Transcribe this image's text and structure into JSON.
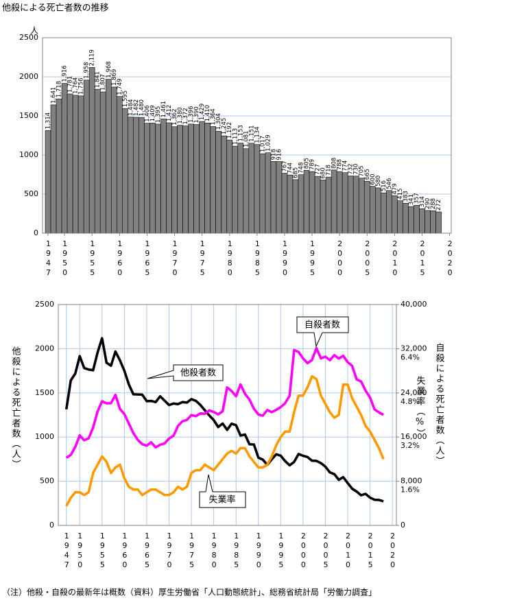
{
  "title": "他殺による死亡者数の推移",
  "note": "（注）他殺・自殺の最新年は概数（資料）厚生労働省「人口動態統計」、総務省統計局「労働力調査」",
  "chart_data": [
    {
      "type": "bar",
      "y_label": "人",
      "color": "#808080",
      "grid": true,
      "x": [
        1947,
        1948,
        1949,
        1950,
        1951,
        1952,
        1953,
        1954,
        1955,
        1956,
        1957,
        1958,
        1959,
        1960,
        1961,
        1962,
        1963,
        1964,
        1965,
        1966,
        1967,
        1968,
        1969,
        1970,
        1971,
        1972,
        1973,
        1974,
        1975,
        1976,
        1977,
        1978,
        1979,
        1980,
        1981,
        1982,
        1983,
        1984,
        1985,
        1986,
        1987,
        1988,
        1989,
        1990,
        1991,
        1992,
        1993,
        1994,
        1995,
        1996,
        1997,
        1998,
        1999,
        2000,
        2001,
        2002,
        2003,
        2004,
        2005,
        2006,
        2007,
        2008,
        2009,
        2010,
        2011,
        2012,
        2013,
        2014,
        2015,
        2016,
        2017,
        2018
      ],
      "values": [
        1314,
        1641,
        1718,
        1916,
        1781,
        1764,
        1756,
        1958,
        2119,
        1841,
        1807,
        1968,
        1869,
        1749,
        1595,
        1484,
        1482,
        1480,
        1406,
        1409,
        1395,
        1461,
        1412,
        1362,
        1380,
        1372,
        1396,
        1390,
        1429,
        1410,
        1364,
        1304,
        1245,
        1192,
        1113,
        1153,
        1081,
        1151,
        1134,
        1017,
        1029,
        918,
        916,
        767,
        744,
        685,
        748,
        805,
        789,
        727,
        680,
        718,
        808,
        788,
        774,
        732,
        730,
        705,
        665,
        600,
        580,
        516,
        546,
        479,
        415,
        383,
        341,
        357,
        314,
        290,
        288,
        272
      ],
      "value_labels": [
        "1,314",
        "1,641",
        "1,718",
        "1,916",
        "1,781",
        "1,764",
        "1,756",
        "1,958",
        "2,119",
        "1,841",
        "1,807",
        "1,968",
        "1,869",
        "1,749",
        "1,595",
        "1,484",
        "1,482",
        "1,480",
        "1,406",
        "1,409",
        "1,395",
        "1,461",
        "1,412",
        "1,362",
        "1,380",
        "1,372",
        "1,396",
        "1,390",
        "1,429",
        "1,410",
        "1,364",
        "1,304",
        "1,245",
        "1,192",
        "1,113",
        "1,153",
        "1,081",
        "1,151",
        "1,134",
        "1,017",
        "1,029",
        "918",
        "916",
        "767",
        "744",
        "685",
        "748",
        "805",
        "789",
        "727",
        "680",
        "718",
        "808",
        "788",
        "774",
        "732",
        "730",
        "705",
        "665",
        "600",
        "580",
        "516",
        "546",
        "479",
        "415",
        "383",
        "341",
        "357",
        "314",
        "290",
        "288",
        "272"
      ],
      "xlim": [
        1946,
        2020.3
      ],
      "xticks": [
        1947,
        1950,
        1955,
        1960,
        1965,
        1970,
        1975,
        1980,
        1985,
        1990,
        1995,
        2000,
        2005,
        2010,
        2015,
        2020
      ],
      "ylim": [
        0,
        2500
      ],
      "yticks": [
        0,
        500,
        1000,
        1500,
        2000,
        2500
      ]
    },
    {
      "type": "line",
      "grid": true,
      "xgrid": true,
      "y_label": "他殺による死亡者数（人）",
      "y2_label": "自殺による死亡者数（人）",
      "y3_label": "失業率（%）",
      "x": [
        1947,
        1948,
        1949,
        1950,
        1951,
        1952,
        1953,
        1954,
        1955,
        1956,
        1957,
        1958,
        1959,
        1960,
        1961,
        1962,
        1963,
        1964,
        1965,
        1966,
        1967,
        1968,
        1969,
        1970,
        1971,
        1972,
        1973,
        1974,
        1975,
        1976,
        1977,
        1978,
        1979,
        1980,
        1981,
        1982,
        1983,
        1984,
        1985,
        1986,
        1987,
        1988,
        1989,
        1990,
        1991,
        1992,
        1993,
        1994,
        1995,
        1996,
        1997,
        1998,
        1999,
        2000,
        2001,
        2002,
        2003,
        2004,
        2005,
        2006,
        2007,
        2008,
        2009,
        2010,
        2011,
        2012,
        2013,
        2014,
        2015,
        2016,
        2017,
        2018
      ],
      "series": [
        {
          "name": "他殺者数",
          "color": "#000000",
          "values": [
            1314,
            1641,
            1718,
            1916,
            1781,
            1764,
            1756,
            1958,
            2119,
            1841,
            1807,
            1968,
            1869,
            1749,
            1595,
            1484,
            1482,
            1480,
            1406,
            1409,
            1395,
            1461,
            1412,
            1362,
            1380,
            1372,
            1396,
            1390,
            1429,
            1410,
            1364,
            1304,
            1245,
            1192,
            1113,
            1153,
            1081,
            1151,
            1134,
            1017,
            1029,
            918,
            916,
            767,
            744,
            685,
            748,
            805,
            789,
            727,
            680,
            718,
            808,
            788,
            774,
            732,
            730,
            705,
            665,
            600,
            580,
            516,
            546,
            479,
            415,
            383,
            341,
            357,
            314,
            290,
            288,
            272
          ]
        },
        {
          "name": "自殺者数",
          "color": "#ff00ff",
          "axis": "y2",
          "values": [
            12262,
            12753,
            14201,
            16311,
            15415,
            15776,
            17731,
            20635,
            22477,
            22107,
            22136,
            23641,
            21090,
            20143,
            18446,
            16724,
            15490,
            14707,
            14444,
            15050,
            14121,
            14601,
            14844,
            15728,
            16239,
            18015,
            18859,
            19105,
            19975,
            19786,
            20269,
            20199,
            20823,
            20542,
            20096,
            20668,
            24985,
            24344,
            23383,
            25524,
            23831,
            22795,
            21125,
            20088,
            19875,
            20893,
            20516,
            20923,
            21420,
            22138,
            23494,
            31755,
            31413,
            30251,
            29375,
            29949,
            32109,
            30247,
            30553,
            29921,
            30827,
            30229,
            30707,
            29554,
            28896,
            26433,
            26063,
            24417,
            23152,
            21017,
            20465,
            20031
          ]
        },
        {
          "name": "失業率",
          "color": "#ff9900",
          "axis": "y3",
          "values": [
            0.7,
            1.0,
            1.2,
            1.2,
            1.1,
            1.2,
            1.9,
            2.2,
            2.5,
            2.3,
            1.9,
            2.1,
            2.2,
            1.7,
            1.4,
            1.3,
            1.3,
            1.1,
            1.2,
            1.3,
            1.3,
            1.2,
            1.1,
            1.1,
            1.2,
            1.4,
            1.3,
            1.4,
            1.9,
            2.0,
            2.0,
            2.2,
            2.1,
            2.0,
            2.2,
            2.4,
            2.6,
            2.7,
            2.6,
            2.8,
            2.8,
            2.5,
            2.3,
            2.1,
            2.1,
            2.2,
            2.5,
            2.9,
            3.2,
            3.4,
            3.4,
            4.1,
            4.7,
            4.7,
            5.0,
            5.4,
            5.3,
            4.7,
            4.4,
            4.1,
            3.9,
            4.0,
            5.1,
            5.1,
            4.6,
            4.3,
            4.0,
            3.6,
            3.4,
            3.1,
            2.8,
            2.4
          ]
        }
      ],
      "xlim": [
        1945.2,
        2020.9
      ],
      "xticks": [
        1947,
        1950,
        1955,
        1960,
        1965,
        1970,
        1975,
        1980,
        1985,
        1990,
        1995,
        2000,
        2005,
        2010,
        2015,
        2020
      ],
      "ylim": [
        0,
        2500
      ],
      "yticks": [
        0,
        500,
        1000,
        1500,
        2000,
        2500
      ],
      "y2lim": [
        0,
        40000
      ],
      "y2ticks": [
        0,
        {
          "value": 8000,
          "label": "8,000"
        },
        {
          "value": 16000,
          "label": "16,000"
        },
        {
          "value": 24000,
          "label": "24,000"
        },
        {
          "value": 32000,
          "label": "32,000"
        },
        {
          "value": 40000,
          "label": "40,000"
        }
      ],
      "y3lim": [
        0,
        8
      ],
      "y3ticks": [
        {
          "value": 1.6,
          "label": "1.6%"
        },
        {
          "value": 3.2,
          "label": "3.2%"
        },
        {
          "value": 4.8,
          "label": "4.8%"
        },
        {
          "value": 6.4,
          "label": "6.4%"
        }
      ]
    }
  ]
}
